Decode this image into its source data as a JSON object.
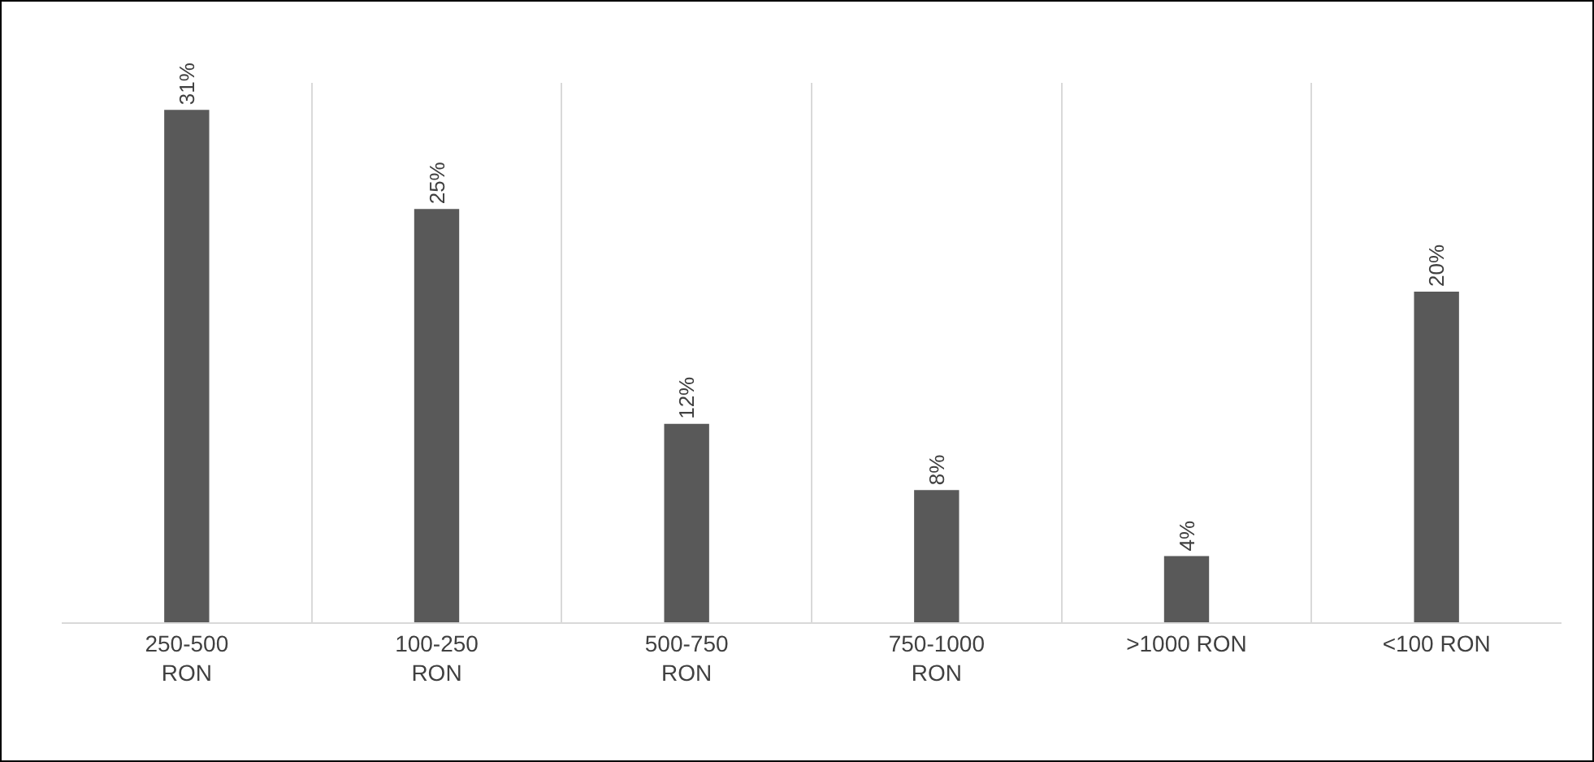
{
  "chart_data": {
    "type": "bar",
    "categories": [
      "250-500 RON",
      "100-250 RON",
      "500-750 RON",
      "750-1000 RON",
      ">1000 RON",
      "<100 RON"
    ],
    "values": [
      31,
      25,
      12,
      8,
      4,
      20
    ],
    "value_labels": [
      "31%",
      "25%",
      "12%",
      "8%",
      "4%",
      "20%"
    ],
    "color": "#595959",
    "grid": "x"
  }
}
